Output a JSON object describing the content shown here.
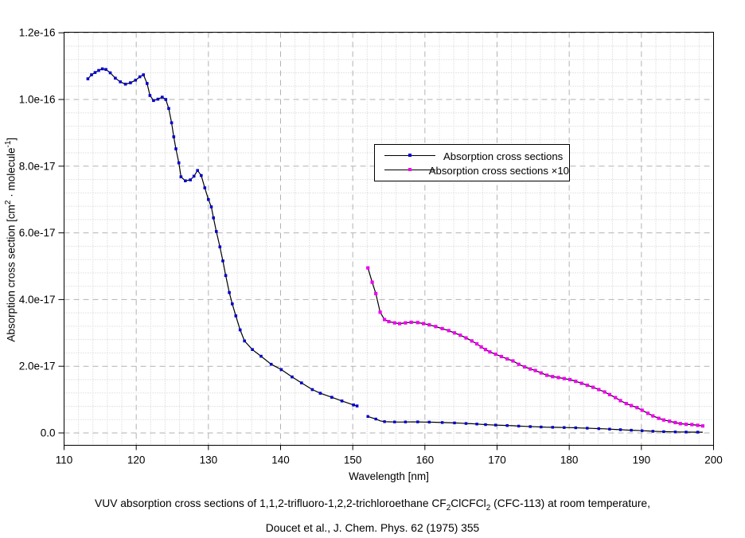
{
  "page": {
    "background": "#ffffff"
  },
  "colors": {
    "series_line": "#000000",
    "series1_marker": "#0000cc",
    "series2_marker": "#f000f0",
    "grid_major": "#b2b2b2",
    "grid_minor": "#cccccc",
    "frame": "#000000",
    "text": "#000000"
  },
  "legend": {
    "entries": [
      {
        "label": "Absorption cross sections",
        "marker_color": "#0000cc"
      },
      {
        "label": "Absorption cross sections ×10",
        "marker_color": "#f000f0"
      }
    ]
  },
  "axes": {
    "x": {
      "title": "Wavelength [nm]",
      "ticks": [
        {
          "v": 110,
          "label": "110"
        },
        {
          "v": 120,
          "label": "120"
        },
        {
          "v": 130,
          "label": "130"
        },
        {
          "v": 140,
          "label": "140"
        },
        {
          "v": 150,
          "label": "150"
        },
        {
          "v": 160,
          "label": "160"
        },
        {
          "v": 170,
          "label": "170"
        },
        {
          "v": 180,
          "label": "180"
        },
        {
          "v": 190,
          "label": "190"
        },
        {
          "v": 200,
          "label": "200"
        }
      ],
      "minor_step_nm": 2
    },
    "y": {
      "title_rich": [
        {
          "t": "Absorption cross section [cm"
        },
        {
          "t": "2",
          "sup": true
        },
        {
          "t": " · molecule"
        },
        {
          "t": "-1",
          "sup": true
        },
        {
          "t": "]"
        }
      ],
      "ticks": [
        {
          "v": 0,
          "label": "0.0"
        },
        {
          "v": 20,
          "label": "2.0e-17"
        },
        {
          "v": 40,
          "label": "4.0e-17"
        },
        {
          "v": 60,
          "label": "6.0e-17"
        },
        {
          "v": 80,
          "label": "8.0e-17"
        },
        {
          "v": 100,
          "label": "1.0e-16"
        },
        {
          "v": 120,
          "label": "1.2e-16"
        }
      ],
      "minor_step_e18": 4
    }
  },
  "caption": {
    "line1_rich": [
      {
        "t": "VUV absorption cross sections of 1,1,2-trifluoro-1,2,2-trichloroethane CF"
      },
      {
        "t": "2",
        "sub": true
      },
      {
        "t": "ClCFCl"
      },
      {
        "t": "2",
        "sub": true
      },
      {
        "t": " (CFC-113) at room temperature,"
      }
    ],
    "line2": "Doucet et al., J. Chem. Phys. 62 (1975) 355"
  },
  "chart_data": {
    "type": "line",
    "title": "",
    "xlabel": "Wavelength [nm]",
    "ylabel": "Absorption cross section [cm^2 · molecule^-1]",
    "xlim": [
      110,
      200
    ],
    "ylim": [
      0,
      1.2e-16
    ],
    "grid": "major dashed + minor dotted, both axes",
    "legend_position": "upper center-right, framed box",
    "value_unit": "1e-18 cm^2 / molecule",
    "series": [
      {
        "name": "Absorption cross sections (short-wavelength segment)",
        "marker_color": "#0000cc",
        "points_e18": [
          [
            113.3,
            106.2
          ],
          [
            113.8,
            107.4
          ],
          [
            114.3,
            108.1
          ],
          [
            114.8,
            108.7
          ],
          [
            115.3,
            109.2
          ],
          [
            115.8,
            109.0
          ],
          [
            116.4,
            108.0
          ],
          [
            117.1,
            106.4
          ],
          [
            117.8,
            105.3
          ],
          [
            118.5,
            104.6
          ],
          [
            119.2,
            105.0
          ],
          [
            119.9,
            105.8
          ],
          [
            120.5,
            106.8
          ],
          [
            121.0,
            107.4
          ],
          [
            121.5,
            104.8
          ],
          [
            121.9,
            101.2
          ],
          [
            122.4,
            99.7
          ],
          [
            123.0,
            100.1
          ],
          [
            123.6,
            100.7
          ],
          [
            124.1,
            100.0
          ],
          [
            124.5,
            97.3
          ],
          [
            124.9,
            93.0
          ],
          [
            125.2,
            88.8
          ],
          [
            125.5,
            85.2
          ],
          [
            125.9,
            81.0
          ],
          [
            126.2,
            76.8
          ],
          [
            126.8,
            75.6
          ],
          [
            127.5,
            75.9
          ],
          [
            128.0,
            77.0
          ],
          [
            128.5,
            78.7
          ],
          [
            129.0,
            77.2
          ],
          [
            129.5,
            73.5
          ],
          [
            130.0,
            70.0
          ],
          [
            130.4,
            67.8
          ],
          [
            130.7,
            64.5
          ],
          [
            131.1,
            60.4
          ],
          [
            131.6,
            55.8
          ],
          [
            132.0,
            51.6
          ],
          [
            132.4,
            47.2
          ],
          [
            132.9,
            42.1
          ],
          [
            133.3,
            38.7
          ],
          [
            133.8,
            35.1
          ],
          [
            134.4,
            30.9
          ],
          [
            135.0,
            27.6
          ],
          [
            136.1,
            25.0
          ],
          [
            137.3,
            23.0
          ],
          [
            138.7,
            20.6
          ],
          [
            140.1,
            19.0
          ],
          [
            141.6,
            16.8
          ],
          [
            142.9,
            15.0
          ],
          [
            144.4,
            13.0
          ],
          [
            145.5,
            11.9
          ],
          [
            147.1,
            10.7
          ],
          [
            148.5,
            9.6
          ],
          [
            150.1,
            8.4
          ],
          [
            150.6,
            8.1
          ]
        ]
      },
      {
        "name": "Absorption cross sections (long-wavelength segment, base values)",
        "marker_color": "#0000cc",
        "points_e18": [
          [
            152.1,
            4.95
          ],
          [
            152.7,
            4.52
          ],
          [
            153.2,
            4.18
          ],
          [
            153.8,
            3.62
          ],
          [
            154.4,
            3.4
          ],
          [
            155.0,
            3.34
          ],
          [
            155.8,
            3.3
          ],
          [
            156.5,
            3.28
          ],
          [
            157.3,
            3.3
          ],
          [
            158.1,
            3.32
          ],
          [
            159.0,
            3.31
          ],
          [
            159.8,
            3.28
          ],
          [
            160.6,
            3.24
          ],
          [
            161.5,
            3.19
          ],
          [
            162.4,
            3.13
          ],
          [
            163.3,
            3.07
          ],
          [
            164.1,
            3.0
          ],
          [
            164.9,
            2.93
          ],
          [
            165.7,
            2.85
          ],
          [
            166.5,
            2.76
          ],
          [
            167.2,
            2.67
          ],
          [
            167.8,
            2.58
          ],
          [
            168.4,
            2.5
          ],
          [
            169.0,
            2.43
          ],
          [
            169.8,
            2.36
          ],
          [
            170.6,
            2.29
          ],
          [
            171.4,
            2.22
          ],
          [
            172.2,
            2.16
          ],
          [
            173.0,
            2.06
          ],
          [
            173.8,
            1.98
          ],
          [
            174.6,
            1.92
          ],
          [
            175.3,
            1.87
          ],
          [
            176.1,
            1.8
          ],
          [
            176.9,
            1.73
          ],
          [
            177.7,
            1.69
          ],
          [
            178.5,
            1.66
          ],
          [
            179.3,
            1.63
          ],
          [
            180.1,
            1.6
          ],
          [
            180.9,
            1.55
          ],
          [
            181.7,
            1.49
          ],
          [
            182.5,
            1.43
          ],
          [
            183.3,
            1.37
          ],
          [
            184.1,
            1.3
          ],
          [
            184.9,
            1.23
          ],
          [
            185.6,
            1.15
          ],
          [
            186.4,
            1.06
          ],
          [
            187.1,
            0.97
          ],
          [
            187.9,
            0.88
          ],
          [
            188.6,
            0.82
          ],
          [
            189.4,
            0.76
          ],
          [
            190.1,
            0.68
          ],
          [
            190.9,
            0.59
          ],
          [
            191.6,
            0.51
          ],
          [
            192.4,
            0.44
          ],
          [
            193.1,
            0.39
          ],
          [
            193.9,
            0.35
          ],
          [
            194.7,
            0.31
          ],
          [
            195.4,
            0.28
          ],
          [
            196.2,
            0.26
          ],
          [
            197.0,
            0.25
          ],
          [
            197.8,
            0.23
          ],
          [
            198.5,
            0.21
          ]
        ]
      },
      {
        "name": "Absorption cross sections ×10",
        "marker_color": "#f000f0",
        "derived_from": "long-wavelength segment",
        "multiplier": 10
      }
    ]
  }
}
